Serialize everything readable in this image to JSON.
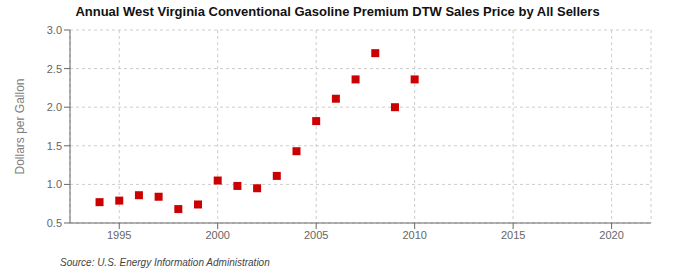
{
  "chart_data": {
    "type": "scatter",
    "title": "Annual West Virginia Conventional Gasoline Premium DTW Sales Price by All Sellers",
    "y_label": "Dollars per Gallon",
    "annotation": "Source: U.S. Energy Information Administration",
    "x": [
      1994,
      1995,
      1996,
      1997,
      1998,
      1999,
      2000,
      2001,
      2002,
      2003,
      2004,
      2005,
      2006,
      2007,
      2008,
      2009,
      2010
    ],
    "values": [
      0.77,
      0.79,
      0.86,
      0.84,
      0.68,
      0.74,
      1.05,
      0.98,
      0.95,
      1.11,
      1.43,
      1.82,
      2.11,
      2.36,
      2.7,
      2.0,
      2.36
    ],
    "color": "#cc0000",
    "marker": "square",
    "xlim": [
      1992.5,
      2022
    ],
    "xticks": [
      1995,
      2000,
      2005,
      2010,
      2015,
      2020
    ],
    "ylim": [
      0.5,
      3.0
    ],
    "yticks": [
      0.5,
      {
        "value": 1.0,
        "label": "1.0"
      },
      1.5,
      {
        "value": 2.0,
        "label": "2.0"
      },
      2.5,
      {
        "value": 3.0,
        "label": "3.0"
      }
    ],
    "grid": true
  }
}
